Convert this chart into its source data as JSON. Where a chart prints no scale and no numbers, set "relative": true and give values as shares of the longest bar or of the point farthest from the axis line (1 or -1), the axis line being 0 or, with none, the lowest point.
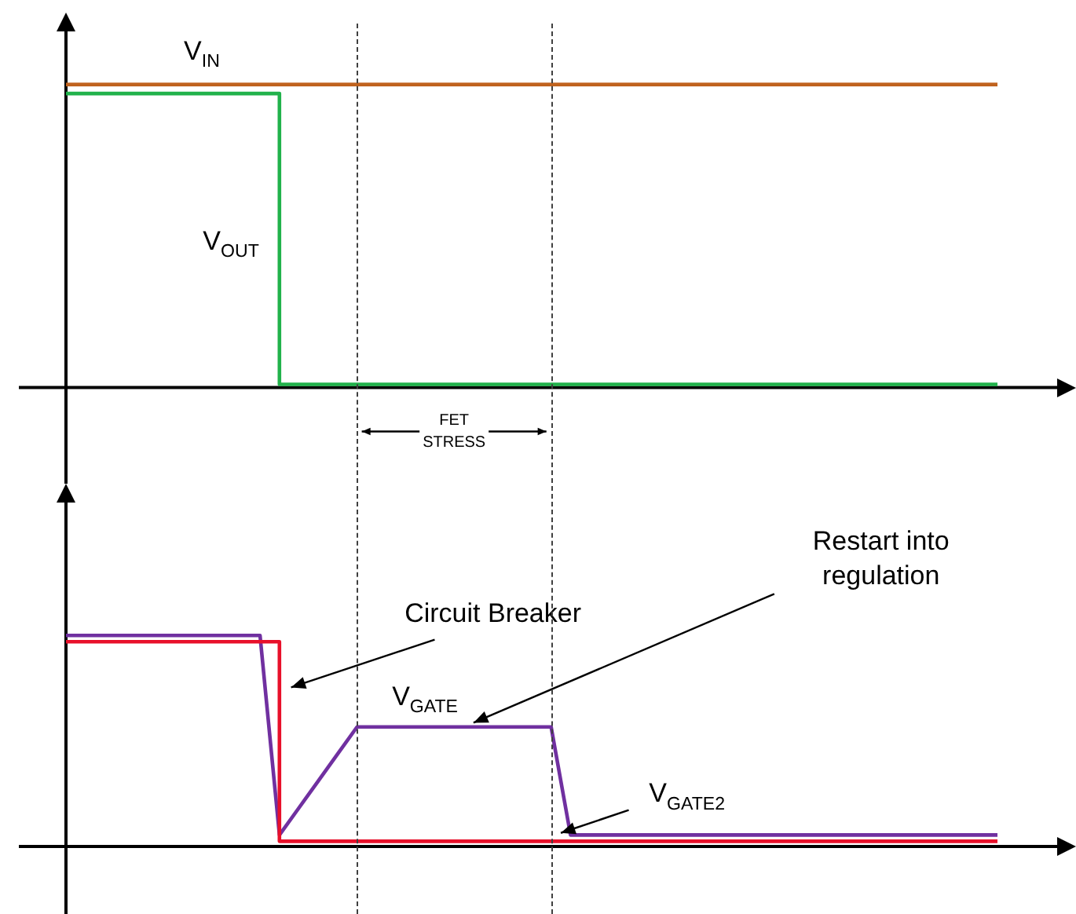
{
  "chart_data": [
    {
      "type": "step",
      "relative": true,
      "legend": false,
      "categories": [
        null,
        null,
        null,
        null,
        null,
        null,
        null,
        null,
        null,
        null,
        null,
        null,
        null,
        null,
        null,
        null,
        null,
        null,
        null,
        null,
        null,
        null,
        null,
        null,
        null,
        null,
        null,
        null,
        null,
        null,
        null,
        null,
        null,
        null,
        null,
        null,
        null,
        null,
        null,
        null,
        null,
        null,
        null,
        null,
        null,
        null,
        null,
        null,
        null
      ],
      "series": [
        {
          "name": "V$_{IN}$",
          "color": "#c0631f",
          "values": [
            1,
            1,
            1,
            1,
            1,
            1,
            1,
            1,
            1,
            1,
            1,
            1,
            1,
            1,
            1,
            1,
            1,
            1,
            1,
            1,
            1,
            1,
            1,
            1,
            1,
            1,
            1,
            1,
            1,
            1,
            1,
            1,
            1,
            1,
            1,
            1,
            1,
            1,
            1,
            1,
            1,
            1,
            1,
            1,
            1,
            1,
            1,
            1,
            1
          ]
        },
        {
          "name": "V$_{OUT}$",
          "color": "#21b24b",
          "values": [
            0.97,
            0.97,
            0.97,
            0.97,
            0.97,
            0.97,
            0.97,
            0.97,
            0.97,
            0.97,
            0.97,
            0,
            0,
            0,
            0,
            0,
            0,
            0,
            0,
            0,
            0,
            0,
            0,
            0,
            0,
            0,
            0,
            0,
            0,
            0,
            0,
            0,
            0,
            0,
            0,
            0,
            0,
            0,
            0,
            0,
            0,
            0,
            0,
            0,
            0,
            0,
            0,
            0,
            0
          ]
        }
      ],
      "annotations": [
        "FET STRESS"
      ]
    },
    {
      "type": "step",
      "relative": true,
      "legend": false,
      "categories": [
        null,
        null,
        null,
        null,
        null,
        null,
        null,
        null,
        null,
        null,
        null,
        null,
        null,
        null,
        null,
        null,
        null,
        null,
        null,
        null,
        null,
        null,
        null,
        null,
        null,
        null,
        null,
        null,
        null,
        null,
        null,
        null,
        null,
        null,
        null,
        null,
        null,
        null,
        null,
        null,
        null,
        null,
        null,
        null,
        null,
        null,
        null,
        null,
        null
      ],
      "series": [
        {
          "name": "V$_{GATE}$",
          "type": "line",
          "color": "#7030a0",
          "values": [
            1,
            1,
            1,
            1,
            1,
            1,
            1,
            1,
            1,
            1,
            1,
            0.04,
            0.17,
            0.3,
            0.43,
            0.56,
            0.56,
            0.56,
            0.56,
            0.56,
            0.56,
            0.56,
            0.56,
            0.56,
            0.56,
            0.56,
            0.04,
            0.04,
            0.04,
            0.04,
            0.04,
            0.04,
            0.04,
            0.04,
            0.04,
            0.04,
            0.04,
            0.04,
            0.04,
            0.04,
            0.04,
            0.04,
            0.04,
            0.04,
            0.04,
            0.04,
            0.04,
            0.04,
            0.04
          ]
        },
        {
          "name": "V$_{GATE2}$",
          "color": "#e8102a",
          "values": [
            0.97,
            0.97,
            0.97,
            0.97,
            0.97,
            0.97,
            0.97,
            0.97,
            0.97,
            0.97,
            0.97,
            0.01,
            0.01,
            0.01,
            0.01,
            0.01,
            0.01,
            0.01,
            0.01,
            0.01,
            0.01,
            0.01,
            0.01,
            0.01,
            0.01,
            0.01,
            0.01,
            0.01,
            0.01,
            0.01,
            0.01,
            0.01,
            0.01,
            0.01,
            0.01,
            0.01,
            0.01,
            0.01,
            0.01,
            0.01,
            0.01,
            0.01,
            0.01,
            0.01,
            0.01,
            0.01,
            0.01,
            0.01,
            0.01
          ]
        }
      ],
      "annotations": [
        "Circuit Breaker",
        "Restart into regulation"
      ]
    }
  ]
}
